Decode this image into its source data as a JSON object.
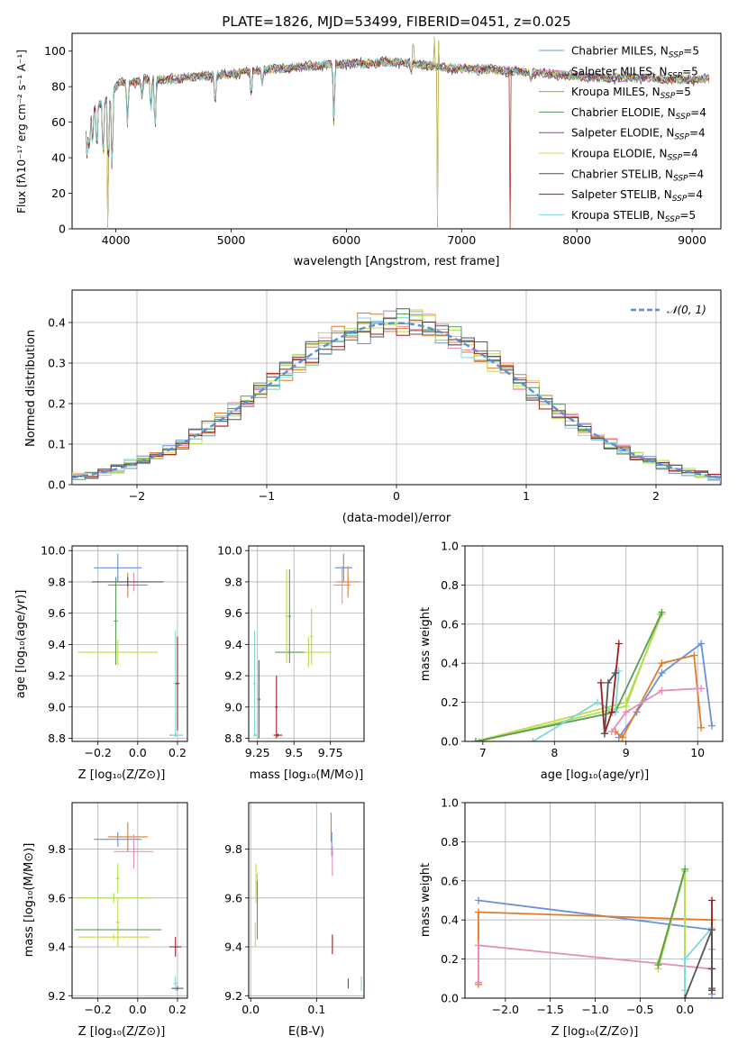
{
  "figure_title": "PLATE=1826, MJD=53499, FIBERID=0451, z=0.025",
  "colors": {
    "series": [
      "#6a8fdb",
      "#e88ab8",
      "#c29a1a",
      "#5a9a5a",
      "#9b3bb4",
      "#d4d44a",
      "#555555",
      "#9e1c1c",
      "#7fd8d8"
    ],
    "models3": [
      "#6a8fdb",
      "#e07b2a",
      "#e88ab8",
      "#c8d850",
      "#ade04a",
      "#5a9a5a",
      "#7fd8d8",
      "#9e1c1c",
      "#555555"
    ],
    "gaussian": "#5b8ed6"
  },
  "chart_data": [
    {
      "id": "spectrum",
      "type": "line",
      "title": "PLATE=1826, MJD=53499, FIBERID=0451, z=0.025",
      "xlabel": "wavelength [Angstrom, rest frame]",
      "ylabel": "Flux [fλ10⁻¹⁷ erg cm⁻² s⁻¹ A⁻¹]",
      "xlim": [
        3620,
        9250
      ],
      "ylim": [
        0,
        110
      ],
      "xticks": [
        4000,
        5000,
        6000,
        7000,
        8000,
        9000
      ],
      "yticks": [
        0,
        20,
        40,
        60,
        80,
        100
      ],
      "legend_position": "right",
      "series": [
        {
          "name": "Chabrier MILES, N_SSP=5",
          "label_main": "Chabrier MILES, N",
          "label_sub": "SSP",
          "label_tail": "=5"
        },
        {
          "name": "Salpeter MILES, N_SSP=5",
          "label_main": "Salpeter MILES, N",
          "label_sub": "SSP",
          "label_tail": "=5"
        },
        {
          "name": "Kroupa MILES, N_SSP=5",
          "label_main": "Kroupa MILES, N",
          "label_sub": "SSP",
          "label_tail": "=5"
        },
        {
          "name": "Chabrier ELODIE, N_SSP=4",
          "label_main": "Chabrier ELODIE, N",
          "label_sub": "SSP",
          "label_tail": "=4"
        },
        {
          "name": "Salpeter ELODIE, N_SSP=4",
          "label_main": "Salpeter ELODIE, N",
          "label_sub": "SSP",
          "label_tail": "=4"
        },
        {
          "name": "Kroupa ELODIE, N_SSP=4",
          "label_main": "Kroupa ELODIE, N",
          "label_sub": "SSP",
          "label_tail": "=4"
        },
        {
          "name": "Chabrier STELIB, N_SSP=4",
          "label_main": "Chabrier STELIB, N",
          "label_sub": "SSP",
          "label_tail": "=4"
        },
        {
          "name": "Salpeter STELIB, N_SSP=4",
          "label_main": "Salpeter STELIB, N",
          "label_sub": "SSP",
          "label_tail": "=4"
        },
        {
          "name": "Kroupa STELIB, N_SSP=5",
          "label_main": "Kroupa STELIB, N",
          "label_sub": "SSP",
          "label_tail": "=5"
        }
      ],
      "continuum": [
        [
          3740,
          58
        ],
        [
          3800,
          66
        ],
        [
          3850,
          70
        ],
        [
          3900,
          72
        ],
        [
          3950,
          74
        ],
        [
          4000,
          80
        ],
        [
          4050,
          83
        ],
        [
          4100,
          82
        ],
        [
          4200,
          83
        ],
        [
          4300,
          84
        ],
        [
          4400,
          84
        ],
        [
          4500,
          84
        ],
        [
          4600,
          85
        ],
        [
          4800,
          86
        ],
        [
          5000,
          87
        ],
        [
          5200,
          89
        ],
        [
          5400,
          90
        ],
        [
          5600,
          91
        ],
        [
          5800,
          92
        ],
        [
          6000,
          93
        ],
        [
          6200,
          93
        ],
        [
          6400,
          94
        ],
        [
          6600,
          93
        ],
        [
          6800,
          91
        ],
        [
          7000,
          90
        ],
        [
          7200,
          90
        ],
        [
          7400,
          89
        ],
        [
          7600,
          88
        ],
        [
          7800,
          87
        ],
        [
          8000,
          86
        ],
        [
          8200,
          85
        ],
        [
          8400,
          85
        ],
        [
          8600,
          85
        ],
        [
          8800,
          84
        ],
        [
          9000,
          84
        ],
        [
          9150,
          84
        ]
      ],
      "absorption_lines": [
        [
          3750,
          38
        ],
        [
          3770,
          40
        ],
        [
          3798,
          42
        ],
        [
          3835,
          38
        ],
        [
          3889,
          30
        ],
        [
          3934,
          25
        ],
        [
          3968,
          22
        ],
        [
          4101,
          55
        ],
        [
          4227,
          72
        ],
        [
          4304,
          62
        ],
        [
          4340,
          50
        ],
        [
          4861,
          65
        ],
        [
          5175,
          70
        ],
        [
          5270,
          80
        ],
        [
          5892,
          55
        ],
        [
          6563,
          85
        ],
        [
          7600,
          82
        ]
      ],
      "drop_outs": [
        [
          3925,
          0
        ],
        [
          6790,
          0
        ],
        [
          7420,
          0
        ]
      ],
      "spikes": [
        [
          6580,
          104
        ],
        [
          6765,
          108
        ],
        [
          6800,
          106
        ]
      ]
    },
    {
      "id": "residuals",
      "type": "histogram",
      "xlabel": "(data-model)/error",
      "ylabel": "Normed distribution",
      "xlim": [
        -2.5,
        2.5
      ],
      "ylim": [
        0,
        0.48
      ],
      "xticks": [
        -2,
        -1,
        0,
        1,
        2
      ],
      "yticks": [
        0.0,
        0.1,
        0.2,
        0.3,
        0.4
      ],
      "bin_width": 0.1,
      "legend_position": "upper right",
      "gaussian_label": "𝒩(0, 1)"
    },
    {
      "id": "age-vs-Z",
      "type": "scatter",
      "xlabel": "Z [log₁₀(Z/Z⊙)]",
      "ylabel": "age  [log₁₀(age/yr)]",
      "xlim": [
        -0.33,
        0.25
      ],
      "ylim": [
        8.78,
        10.03
      ],
      "xticks": [
        -0.2,
        0.0,
        0.2
      ],
      "yticks": [
        8.8,
        9.0,
        9.2,
        9.4,
        9.6,
        9.8,
        10.0
      ],
      "points": [
        {
          "x": -0.1,
          "y": 9.89,
          "xerr": 0.12,
          "yerr": 0.09,
          "c": 0
        },
        {
          "x": -0.05,
          "y": 9.78,
          "xerr": 0.1,
          "yerr": 0.08,
          "c": 1
        },
        {
          "x": -0.02,
          "y": 9.8,
          "xerr": 0.08,
          "yerr": 0.06,
          "c": 2
        },
        {
          "x": -0.05,
          "y": 9.8,
          "xerr": 0.18,
          "yerr": 0.03,
          "c": 8
        },
        {
          "x": -0.1,
          "y": 9.35,
          "xerr": 0.2,
          "yerr": 0.08,
          "c": 3
        },
        {
          "x": -0.11,
          "y": 9.55,
          "xerr": 0.01,
          "yerr": 0.28,
          "c": 5
        },
        {
          "x": 0.19,
          "y": 9.15,
          "xerr": 0.01,
          "yerr": 0.34,
          "c": 6
        },
        {
          "x": 0.2,
          "y": 9.15,
          "xerr": 0.01,
          "yerr": 0.3,
          "c": 7
        },
        {
          "x": 0.19,
          "y": 8.82,
          "xerr": 0.03,
          "yerr": 0.01,
          "c": 0
        },
        {
          "x": 0.2,
          "y": 8.82,
          "xerr": 0.03,
          "yerr": 0.01,
          "c": 6
        }
      ]
    },
    {
      "id": "age-vs-mass",
      "type": "scatter",
      "xlabel": "mass [log₁₀(M/M⊙)]",
      "ylabel": "",
      "xlim": [
        9.19,
        9.98
      ],
      "ylim": [
        8.78,
        10.03
      ],
      "xticks": [
        9.25,
        9.5,
        9.75
      ],
      "yticks": [
        8.8,
        9.0,
        9.2,
        9.4,
        9.6,
        9.8,
        10.0
      ],
      "points": [
        {
          "x": 9.84,
          "y": 9.89,
          "xerr": 0.06,
          "yerr": 0.09,
          "c": 0
        },
        {
          "x": 9.83,
          "y": 9.78,
          "xerr": 0.06,
          "yerr": 0.12,
          "c": 2
        },
        {
          "x": 9.87,
          "y": 9.8,
          "xerr": 0.08,
          "yerr": 0.1,
          "c": 1
        },
        {
          "x": 9.6,
          "y": 9.35,
          "xerr": 0.16,
          "yerr": 0.1,
          "c": 3
        },
        {
          "x": 9.47,
          "y": 9.35,
          "xerr": 0.1,
          "yerr": 0.01,
          "c": 5
        },
        {
          "x": 9.62,
          "y": 9.45,
          "xerr": 0.01,
          "yerr": 0.18,
          "c": 4
        },
        {
          "x": 9.47,
          "y": 9.58,
          "xerr": 0.01,
          "yerr": 0.3,
          "c": 5
        },
        {
          "x": 9.45,
          "y": 9.58,
          "xerr": 0.01,
          "yerr": 0.3,
          "c": 3
        },
        {
          "x": 9.23,
          "y": 9.15,
          "xerr": 0.01,
          "yerr": 0.34,
          "c": 6
        },
        {
          "x": 9.26,
          "y": 9.05,
          "xerr": 0.01,
          "yerr": 0.25,
          "c": 8
        },
        {
          "x": 9.38,
          "y": 9.0,
          "xerr": 0.01,
          "yerr": 0.2,
          "c": 7
        },
        {
          "x": 9.39,
          "y": 8.82,
          "xerr": 0.03,
          "yerr": 0.01,
          "c": 7
        },
        {
          "x": 9.24,
          "y": 8.82,
          "xerr": 0.02,
          "yerr": 0.01,
          "c": 6
        }
      ]
    },
    {
      "id": "weight-vs-age",
      "type": "line",
      "xlabel": "age  [log₁₀(age/yr)]",
      "ylabel": "mass weight",
      "xlim": [
        6.75,
        10.35
      ],
      "ylim": [
        0,
        1.0
      ],
      "xticks": [
        7,
        8,
        9,
        10
      ],
      "yticks": [
        0.0,
        0.2,
        0.4,
        0.6,
        0.8,
        1.0
      ],
      "series": [
        {
          "c": 0,
          "x": [
            8.9,
            9.15,
            9.5,
            10.05,
            10.2
          ],
          "y": [
            0.02,
            0.15,
            0.35,
            0.5,
            0.08
          ]
        },
        {
          "c": 1,
          "x": [
            8.85,
            8.95,
            9.5,
            9.95,
            10.05
          ],
          "y": [
            0.05,
            0.02,
            0.4,
            0.44,
            0.07
          ]
        },
        {
          "c": 2,
          "x": [
            8.8,
            9.0,
            9.5,
            10.0,
            10.05
          ],
          "y": [
            0.05,
            0.15,
            0.26,
            0.27,
            0.27
          ]
        },
        {
          "c": 3,
          "x": [
            6.9,
            9.0,
            9.5
          ],
          "y": [
            0.0,
            0.2,
            0.65
          ]
        },
        {
          "c": 4,
          "x": [
            6.95,
            9.0,
            9.48
          ],
          "y": [
            0.0,
            0.18,
            0.65
          ]
        },
        {
          "c": 5,
          "x": [
            6.9,
            8.85,
            9.5
          ],
          "y": [
            0.0,
            0.15,
            0.66
          ]
        },
        {
          "c": 6,
          "x": [
            7.7,
            8.6,
            8.85,
            8.9
          ],
          "y": [
            0.0,
            0.2,
            0.15,
            0.36
          ]
        },
        {
          "c": 7,
          "x": [
            8.65,
            8.7,
            8.8,
            8.9
          ],
          "y": [
            0.3,
            0.04,
            0.15,
            0.5
          ]
        },
        {
          "c": 8,
          "x": [
            8.7,
            8.75,
            8.85
          ],
          "y": [
            0.04,
            0.3,
            0.35
          ]
        }
      ]
    },
    {
      "id": "mass-vs-Z",
      "type": "scatter",
      "xlabel": "Z [log₁₀(Z/Z⊙)]",
      "ylabel": "mass [log₁₀(M/M⊙)]",
      "xlim": [
        -0.33,
        0.25
      ],
      "ylim": [
        9.19,
        9.99
      ],
      "xticks": [
        -0.2,
        0.0,
        0.2
      ],
      "yticks": [
        9.2,
        9.4,
        9.6,
        9.8
      ],
      "points": [
        {
          "x": -0.1,
          "y": 9.84,
          "xerr": 0.12,
          "yerr": 0.03,
          "c": 0
        },
        {
          "x": -0.05,
          "y": 9.85,
          "xerr": 0.1,
          "yerr": 0.06,
          "c": 1
        },
        {
          "x": -0.02,
          "y": 9.79,
          "xerr": 0.1,
          "yerr": 0.07,
          "c": 2
        },
        {
          "x": -0.12,
          "y": 9.6,
          "xerr": 0.18,
          "yerr": 0.02,
          "c": 4
        },
        {
          "x": -0.1,
          "y": 9.68,
          "xerr": 0.01,
          "yerr": 0.06,
          "c": 4
        },
        {
          "x": -0.1,
          "y": 9.47,
          "xerr": 0.22,
          "yerr": 0.01,
          "c": 5
        },
        {
          "x": -0.12,
          "y": 9.44,
          "xerr": 0.18,
          "yerr": 0.01,
          "c": 3
        },
        {
          "x": -0.1,
          "y": 9.5,
          "xerr": 0.01,
          "yerr": 0.1,
          "c": 3
        },
        {
          "x": 0.19,
          "y": 9.4,
          "xerr": 0.03,
          "yerr": 0.04,
          "c": 7
        },
        {
          "x": 0.19,
          "y": 9.25,
          "xerr": 0.01,
          "yerr": 0.03,
          "c": 6
        },
        {
          "x": 0.2,
          "y": 9.23,
          "xerr": 0.03,
          "yerr": 0.01,
          "c": 8
        }
      ]
    },
    {
      "id": "mass-vs-EBV",
      "type": "scatter",
      "xlabel": "E(B-V)",
      "ylabel": "",
      "xlim": [
        -0.003,
        0.172
      ],
      "ylim": [
        9.19,
        9.99
      ],
      "xticks": [
        0.0,
        0.1
      ],
      "yticks": [
        9.2,
        9.4,
        9.6,
        9.8
      ],
      "points": [
        {
          "x": 0.122,
          "y": 9.89,
          "xerr": 0,
          "yerr": 0.06,
          "c": 1
        },
        {
          "x": 0.123,
          "y": 9.82,
          "xerr": 0,
          "yerr": 0.05,
          "c": 0
        },
        {
          "x": 0.124,
          "y": 9.75,
          "xerr": 0,
          "yerr": 0.06,
          "c": 2
        },
        {
          "x": 0.124,
          "y": 9.41,
          "xerr": 0,
          "yerr": 0.04,
          "c": 7
        },
        {
          "x": 0.148,
          "y": 9.25,
          "xerr": 0,
          "yerr": 0.02,
          "c": 8
        },
        {
          "x": 0.168,
          "y": 9.25,
          "xerr": 0,
          "yerr": 0.03,
          "c": 6
        },
        {
          "x": 0.008,
          "y": 9.66,
          "xerr": 0,
          "yerr": 0.08,
          "c": 3
        },
        {
          "x": 0.01,
          "y": 9.65,
          "xerr": 0,
          "yerr": 0.05,
          "c": 4
        },
        {
          "x": 0.01,
          "y": 9.55,
          "xerr": 0,
          "yerr": 0.12,
          "c": 5
        },
        {
          "x": 0.007,
          "y": 9.45,
          "xerr": 0,
          "yerr": 0.05,
          "c": 3
        }
      ]
    },
    {
      "id": "weight-vs-Z",
      "type": "line",
      "xlabel": "Z [log₁₀(Z/Z⊙)]",
      "ylabel": "mass weight",
      "xlim": [
        -2.45,
        0.42
      ],
      "ylim": [
        0,
        1.0
      ],
      "xticks": [
        -2.0,
        -1.5,
        -1.0,
        -0.5,
        0.0
      ],
      "yticks": [
        0.0,
        0.2,
        0.4,
        0.6,
        0.8,
        1.0
      ],
      "series": [
        {
          "c": 0,
          "x": [
            -2.3,
            0.3,
            0.3
          ],
          "y": [
            0.5,
            0.35,
            0.02
          ]
        },
        {
          "c": 1,
          "x": [
            -2.3,
            -2.3,
            0.3,
            0.3
          ],
          "y": [
            0.07,
            0.44,
            0.4,
            0.05
          ]
        },
        {
          "c": 2,
          "x": [
            -2.3,
            -2.3,
            0.3,
            0.3
          ],
          "y": [
            0.08,
            0.27,
            0.15,
            0.25
          ]
        },
        {
          "c": 3,
          "x": [
            -0.3,
            0.0,
            0.0
          ],
          "y": [
            0.15,
            0.65,
            0.2
          ]
        },
        {
          "c": 4,
          "x": [
            -0.3,
            0.0,
            0.0
          ],
          "y": [
            0.18,
            0.65,
            0.04
          ]
        },
        {
          "c": 5,
          "x": [
            -0.3,
            0.0
          ],
          "y": [
            0.17,
            0.66
          ]
        },
        {
          "c": 6,
          "x": [
            0.0,
            0.0,
            0.3
          ],
          "y": [
            0.0,
            0.2,
            0.36
          ]
        },
        {
          "c": 7,
          "x": [
            0.3,
            0.3,
            0.3
          ],
          "y": [
            0.5,
            0.04,
            0.15
          ]
        },
        {
          "c": 8,
          "x": [
            0.0,
            0.3,
            0.3
          ],
          "y": [
            0.0,
            0.35,
            0.05
          ]
        }
      ]
    }
  ]
}
